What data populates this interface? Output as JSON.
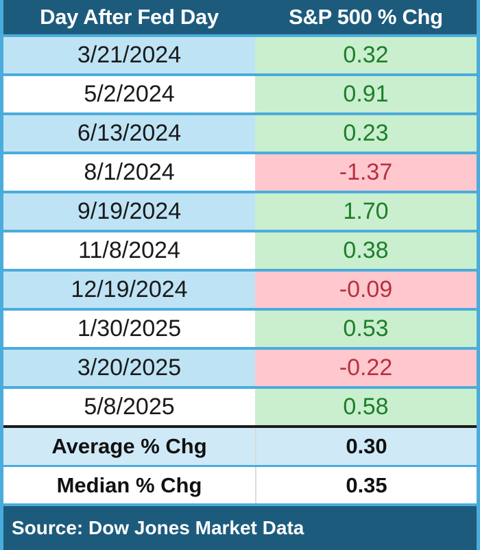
{
  "chart_data": {
    "type": "table",
    "title": "Day After Fed Day — S&P 500 % Chg",
    "columns": [
      "Day After Fed Day",
      "S&P 500 % Chg"
    ],
    "rows": [
      [
        "3/21/2024",
        0.32
      ],
      [
        "5/2/2024",
        0.91
      ],
      [
        "6/13/2024",
        0.23
      ],
      [
        "8/1/2024",
        -1.37
      ],
      [
        "9/19/2024",
        1.7
      ],
      [
        "11/8/2024",
        0.38
      ],
      [
        "12/19/2024",
        -0.09
      ],
      [
        "1/30/2025",
        0.53
      ],
      [
        "3/20/2025",
        -0.22
      ],
      [
        "5/8/2025",
        0.58
      ]
    ],
    "summary": {
      "average_pct_chg": 0.3,
      "median_pct_chg": 0.35
    },
    "source": "Source: Dow Jones Market Data"
  },
  "table": {
    "header": {
      "col_date": "Day After Fed Day",
      "col_change": "S&P 500 % Chg"
    },
    "rows": [
      {
        "date": "3/21/2024",
        "value": "0.32"
      },
      {
        "date": "5/2/2024",
        "value": "0.91"
      },
      {
        "date": "6/13/2024",
        "value": "0.23"
      },
      {
        "date": "8/1/2024",
        "value": "-1.37"
      },
      {
        "date": "9/19/2024",
        "value": "1.70"
      },
      {
        "date": "11/8/2024",
        "value": "0.38"
      },
      {
        "date": "12/19/2024",
        "value": "-0.09"
      },
      {
        "date": "1/30/2025",
        "value": "0.53"
      },
      {
        "date": "3/20/2025",
        "value": "-0.22"
      },
      {
        "date": "5/8/2025",
        "value": "0.58"
      }
    ],
    "average": {
      "label": "Average % Chg",
      "value": "0.30"
    },
    "median": {
      "label": "Median % Chg",
      "value": "0.35"
    },
    "source": "Source: Dow Jones Market Data"
  },
  "colors": {
    "header_bg": "#1d5b7d",
    "header_text": "#ffffff",
    "row_blue": "#bee3f4",
    "row_white": "#ffffff",
    "positive_bg": "#c9efce",
    "positive_text": "#1e7e2a",
    "negative_bg": "#ffc7ce",
    "negative_text": "#b5323e",
    "grid_blue": "#4aacdc",
    "summary_divider": "#1a1a1a",
    "footer_bg": "#1d5b7d"
  }
}
